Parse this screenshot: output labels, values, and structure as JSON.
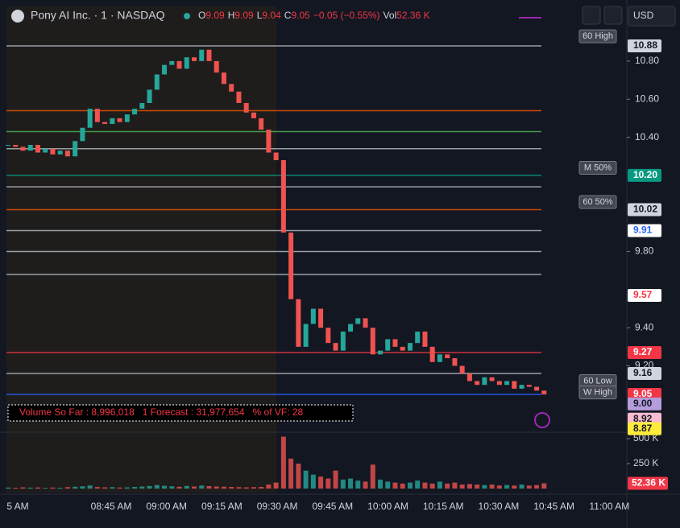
{
  "header": {
    "symbol": "Pony AI Inc. · 1 · NASDAQ",
    "ohlc": [
      {
        "label": "O",
        "value": "9.09"
      },
      {
        "label": "H",
        "value": "9.09"
      },
      {
        "label": "L",
        "value": "9.04"
      },
      {
        "label": "C",
        "value": "9.05"
      },
      {
        "label": "",
        "value": "−0.05 (−0.55%)"
      },
      {
        "label": "Vol",
        "value": "52.36 K"
      }
    ],
    "currency": "USD"
  },
  "chart_data": {
    "type": "candlestick",
    "closes": [
      10.36,
      10.35,
      10.33,
      10.36,
      10.32,
      10.34,
      10.31,
      10.33,
      10.3,
      10.38,
      10.45,
      10.55,
      10.48,
      10.47,
      10.5,
      10.48,
      10.52,
      10.55,
      10.58,
      10.65,
      10.73,
      10.78,
      10.8,
      10.76,
      10.82,
      10.8,
      10.86,
      10.8,
      10.74,
      10.68,
      10.64,
      10.58,
      10.53,
      10.5,
      10.44,
      10.32,
      10.28,
      9.9,
      9.55,
      9.3,
      9.42,
      9.5,
      9.4,
      9.32,
      9.28,
      9.38,
      9.42,
      9.45,
      9.4,
      9.26,
      9.28,
      9.34,
      9.3,
      9.28,
      9.32,
      9.38,
      9.3,
      9.22,
      9.26,
      9.24,
      9.2,
      9.16,
      9.12,
      9.1,
      9.14,
      9.12,
      9.1,
      9.12,
      9.08,
      9.1,
      9.09,
      9.07,
      9.05
    ],
    "volumes": [
      10,
      8,
      12,
      9,
      11,
      7,
      10,
      8,
      14,
      18,
      22,
      30,
      15,
      12,
      14,
      10,
      12,
      16,
      20,
      25,
      35,
      28,
      22,
      18,
      26,
      20,
      30,
      24,
      20,
      18,
      16,
      14,
      12,
      14,
      16,
      40,
      60,
      520,
      300,
      250,
      180,
      140,
      120,
      100,
      180,
      90,
      100,
      80,
      70,
      240,
      90,
      70,
      60,
      50,
      60,
      80,
      60,
      50,
      70,
      50,
      60,
      40,
      45,
      40,
      35,
      40,
      30,
      35,
      30,
      40,
      30,
      35,
      52.36
    ],
    "up_color": "#26a69a",
    "down_color": "#ef5350",
    "ylim": [
      8.82,
      10.98
    ],
    "yticks": [
      {
        "value": 10.8,
        "label": "10.80"
      },
      {
        "value": 10.6,
        "label": "10.60"
      },
      {
        "value": 10.4,
        "label": "10.40"
      },
      {
        "value": 9.8,
        "label": "9.80"
      },
      {
        "value": 9.4,
        "label": "9.40"
      },
      {
        "value": 9.2,
        "label": "9.20"
      }
    ],
    "vol_ticks": [
      {
        "value": 500,
        "label": "500 K"
      },
      {
        "value": 250,
        "label": "250 K"
      }
    ],
    "vol_tag": {
      "value": 52.36,
      "label": "52.36 K"
    },
    "price_tags": [
      {
        "value": 10.88,
        "label": "10.88",
        "bg": "#d1d4dc",
        "fg": "#131722"
      },
      {
        "value": 10.2,
        "label": "10.20",
        "bg": "#089981",
        "fg": "#ffffff"
      },
      {
        "value": 10.02,
        "label": "10.02",
        "bg": "#d1d4dc",
        "fg": "#131722"
      },
      {
        "value": 9.91,
        "label": "9.91",
        "bg": "#ffffff",
        "fg": "#2962ff"
      },
      {
        "value": 9.57,
        "label": "9.57",
        "bg": "#ffffff",
        "fg": "#f23645"
      },
      {
        "value": 9.27,
        "label": "9.27",
        "bg": "#f23645",
        "fg": "#ffffff"
      },
      {
        "value": 9.16,
        "label": "9.16",
        "bg": "#d1d4dc",
        "fg": "#131722"
      },
      {
        "value": 9.05,
        "label": "9.05",
        "bg": "#f23645",
        "fg": "#ffffff"
      },
      {
        "value": 9.0,
        "label": "9.00",
        "bg": "#b39ddb",
        "fg": "#131722"
      },
      {
        "value": 8.92,
        "label": "8.92",
        "bg": "#f8bbd0",
        "fg": "#131722"
      },
      {
        "value": 8.87,
        "label": "8.87",
        "bg": "#ffeb3b",
        "fg": "#131722"
      }
    ],
    "levels": [
      {
        "value": 10.88,
        "color": "#b2b5be"
      },
      {
        "value": 10.54,
        "color": "#e65100"
      },
      {
        "value": 10.43,
        "color": "#4caf50"
      },
      {
        "value": 10.34,
        "color": "#b2b5be"
      },
      {
        "value": 10.2,
        "color": "#089981"
      },
      {
        "value": 10.14,
        "color": "#b2b5be"
      },
      {
        "value": 10.02,
        "color": "#e65100"
      },
      {
        "value": 9.91,
        "color": "#b2b5be"
      },
      {
        "value": 9.8,
        "color": "#b2b5be"
      },
      {
        "value": 9.68,
        "color": "#b2b5be"
      },
      {
        "value": 9.27,
        "color": "#f23645"
      },
      {
        "value": 9.16,
        "color": "#b2b5be"
      },
      {
        "value": 9.05,
        "color": "#2962ff"
      }
    ],
    "level_labels": [
      {
        "value": 10.93,
        "label": "60 High"
      },
      {
        "value": 10.24,
        "label": "M 50%"
      },
      {
        "value": 10.06,
        "label": "60 50%"
      },
      {
        "value": 9.12,
        "label": "60 Low"
      },
      {
        "value": 9.06,
        "label": "W High"
      }
    ],
    "x_labels": [
      "5 AM",
      "08:45 AM",
      "09:00 AM",
      "09:15 AM",
      "09:30 AM",
      "09:45 AM",
      "10:00 AM",
      "10:15 AM",
      "10:30 AM",
      "10:45 AM",
      "11:00 AM"
    ],
    "volume_text": "Volume So Far : 8,996,018   1 Forecast : 31,977,654   % of VF: 28"
  }
}
